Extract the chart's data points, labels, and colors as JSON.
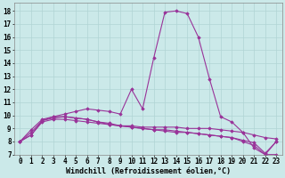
{
  "background_color": "#cbe9e9",
  "grid_color": "#b0d4d4",
  "line_color": "#993399",
  "marker": "D",
  "markersize": 1.8,
  "linewidth": 0.8,
  "xlabel": "Windchill (Refroidissement éolien,°C)",
  "xlabel_fontsize": 6.0,
  "tick_fontsize": 5.5,
  "ylim": [
    7,
    18.6
  ],
  "xlim": [
    -0.5,
    23.5
  ],
  "yticks": [
    7,
    8,
    9,
    10,
    11,
    12,
    13,
    14,
    15,
    16,
    17,
    18
  ],
  "xticks": [
    0,
    1,
    2,
    3,
    4,
    5,
    6,
    7,
    8,
    9,
    10,
    11,
    12,
    13,
    14,
    15,
    16,
    17,
    18,
    19,
    20,
    21,
    22,
    23
  ],
  "series": [
    [
      8.0,
      8.9,
      9.7,
      9.9,
      10.1,
      10.3,
      10.5,
      10.4,
      10.3,
      10.1,
      12.0,
      10.5,
      14.4,
      17.9,
      18.0,
      17.8,
      16.0,
      12.8,
      9.9,
      9.5,
      8.7,
      7.5,
      7.0,
      8.0
    ],
    [
      8.0,
      8.7,
      9.6,
      9.9,
      9.9,
      9.8,
      9.7,
      9.5,
      9.3,
      9.2,
      9.2,
      9.1,
      9.1,
      9.1,
      9.1,
      9.0,
      9.0,
      9.0,
      8.9,
      8.8,
      8.7,
      8.5,
      8.3,
      8.2
    ],
    [
      8.0,
      8.5,
      9.5,
      9.7,
      9.7,
      9.6,
      9.5,
      9.4,
      9.3,
      9.2,
      9.1,
      9.0,
      8.9,
      8.9,
      8.8,
      8.7,
      8.6,
      8.5,
      8.4,
      8.3,
      8.1,
      7.9,
      7.1,
      8.0
    ],
    [
      8.0,
      8.5,
      9.6,
      9.8,
      9.9,
      9.8,
      9.7,
      9.5,
      9.4,
      9.2,
      9.1,
      9.0,
      8.9,
      8.8,
      8.7,
      8.7,
      8.6,
      8.5,
      8.4,
      8.3,
      8.0,
      7.7,
      7.0,
      7.0
    ]
  ]
}
